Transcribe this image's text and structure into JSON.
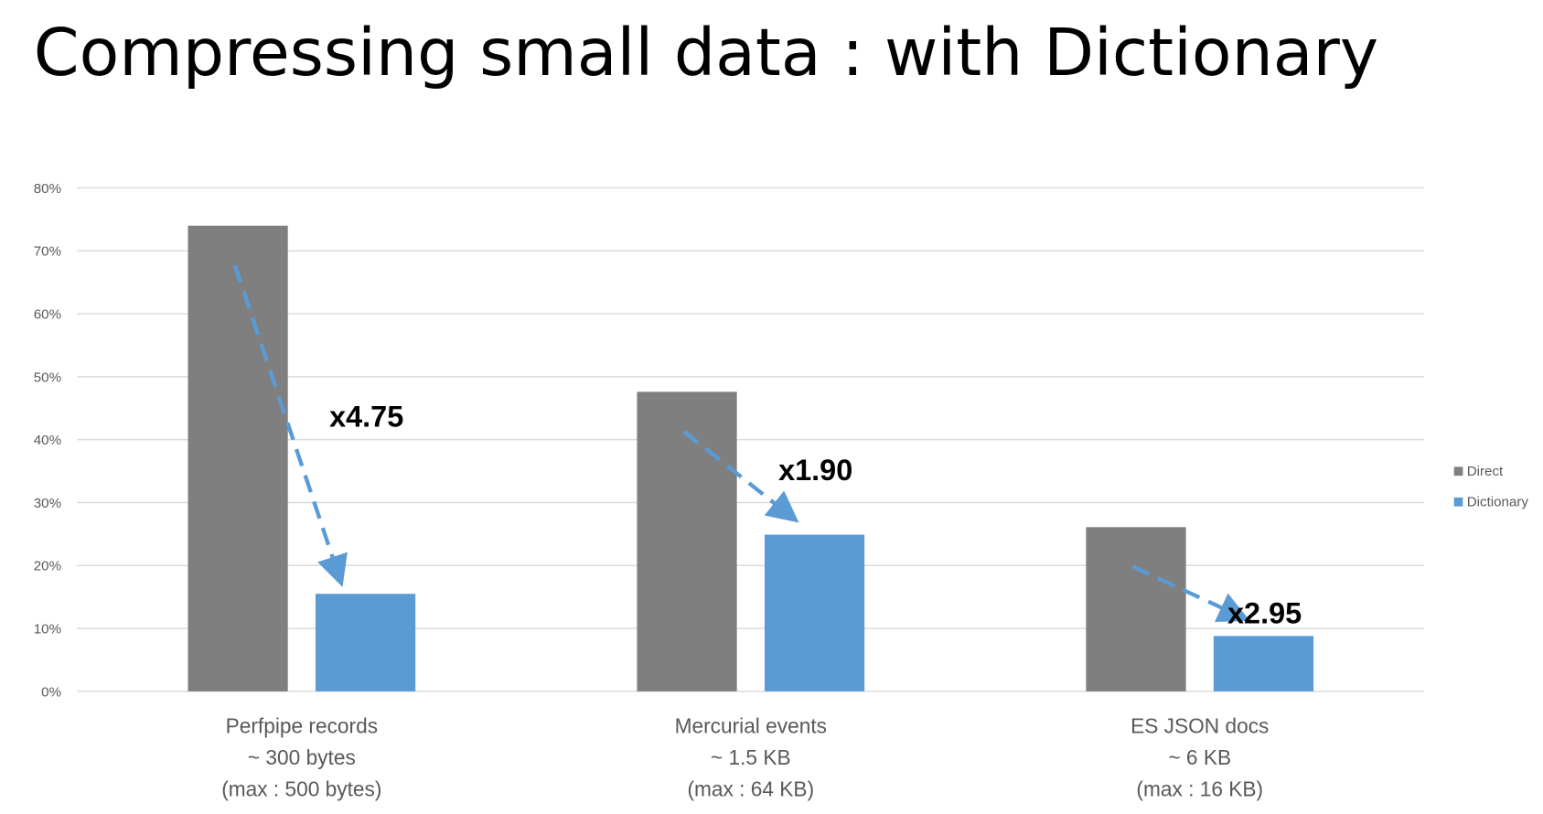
{
  "title": "Compressing small data : with Dictionary",
  "colors": {
    "direct": "#7f7f7f",
    "dictionary": "#5b9bd5",
    "grid": "#d9d9d9",
    "arrow": "#5b9bd5"
  },
  "chart_data": {
    "type": "bar",
    "title": "",
    "xlabel": "",
    "ylabel": "",
    "ylim": [
      0,
      80
    ],
    "yticks": [
      "0%",
      "10%",
      "20%",
      "30%",
      "40%",
      "50%",
      "60%",
      "70%",
      "80%"
    ],
    "grid": true,
    "legend_position": "right",
    "categories": [
      [
        "Perfpipe records",
        "~ 300 bytes",
        "(max : 500 bytes)"
      ],
      [
        "Mercurial events",
        "~ 1.5 KB",
        "(max : 64 KB)"
      ],
      [
        "ES JSON docs",
        "~ 6 KB",
        "(max : 16 KB)"
      ]
    ],
    "series": [
      {
        "name": "Direct",
        "values": [
          74,
          47.6,
          26.1
        ]
      },
      {
        "name": "Dictionary",
        "values": [
          15.5,
          24.9,
          8.8
        ]
      }
    ],
    "annotations": [
      "x4.75",
      "x1.90",
      "x2.95"
    ]
  }
}
